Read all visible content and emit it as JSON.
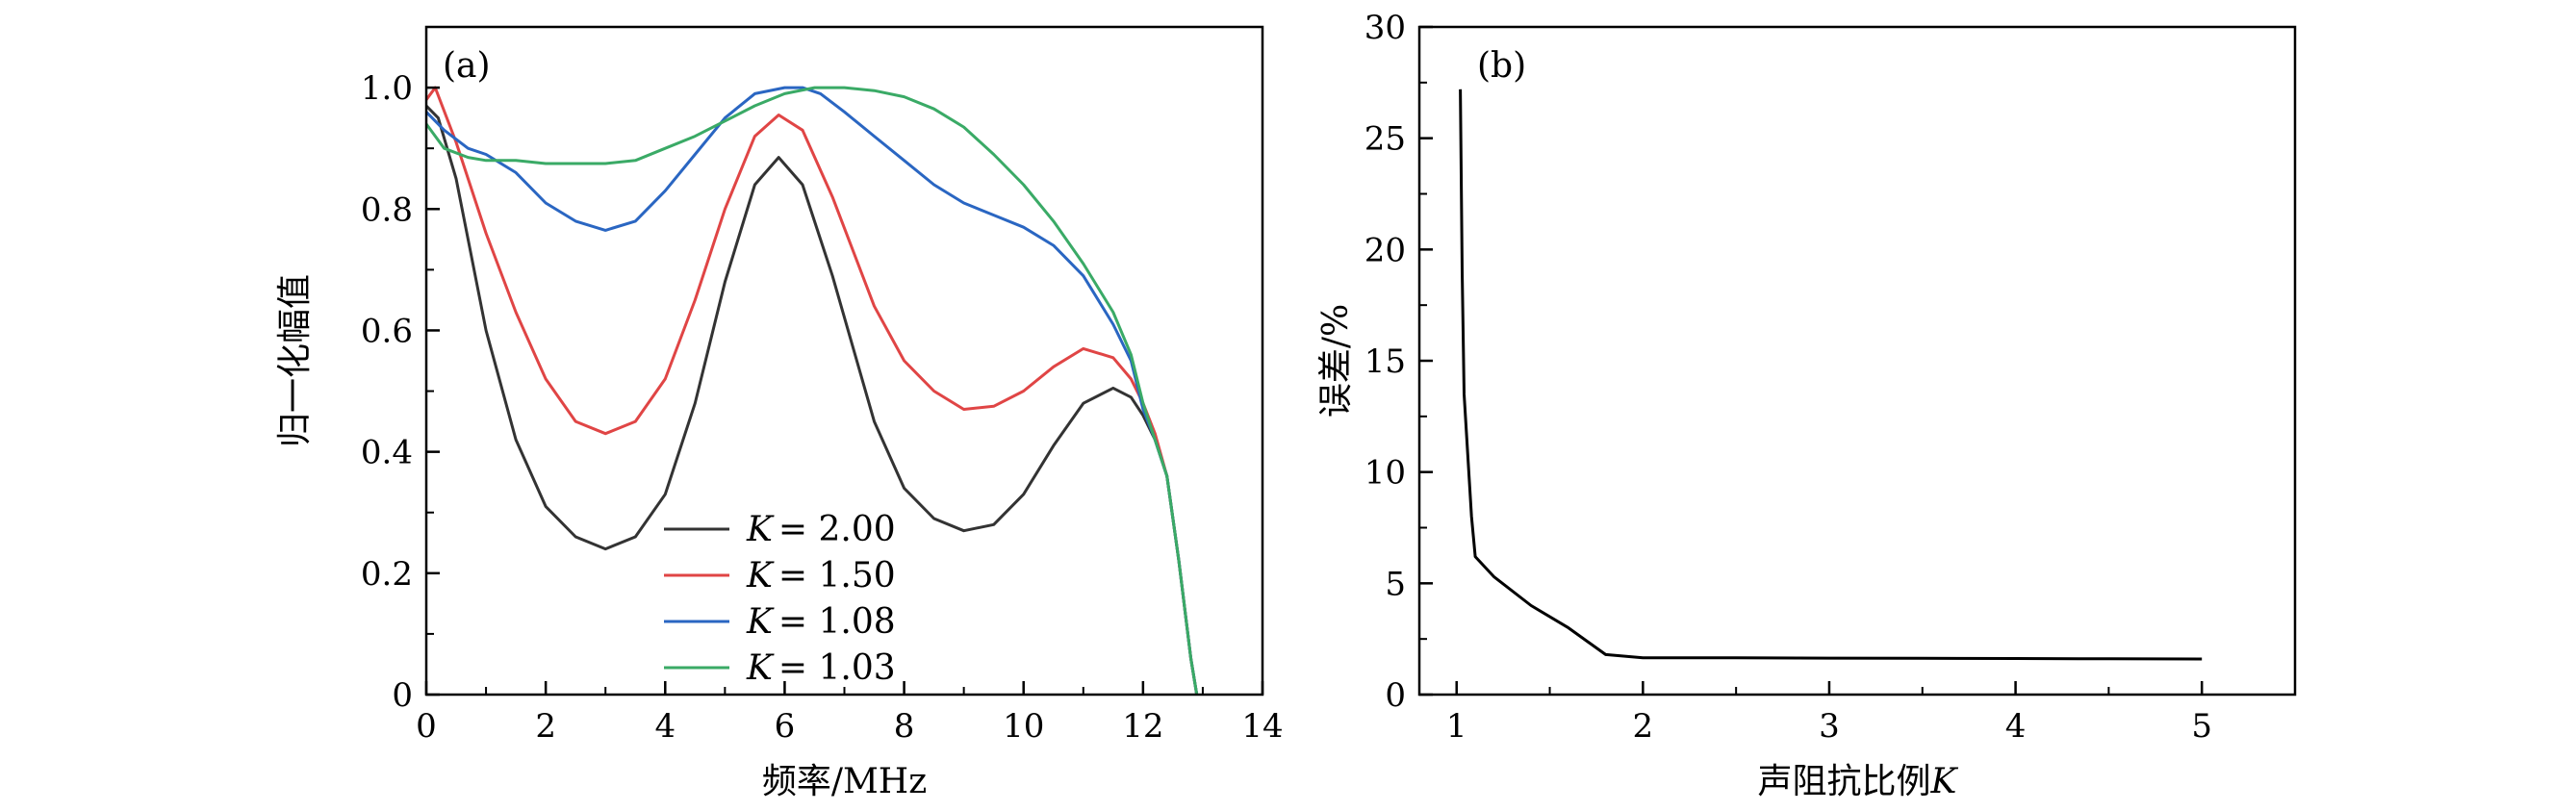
{
  "chart_data": [
    {
      "type": "line",
      "panel_label": "(a)",
      "xlabel": "频率/MHz",
      "ylabel": "归一化幅值",
      "xlim": [
        0,
        14
      ],
      "ylim": [
        0,
        1.1
      ],
      "xticks": [
        0,
        2,
        4,
        6,
        8,
        10,
        12,
        14
      ],
      "xtick_labels": [
        "0",
        "2",
        "4",
        "6",
        "8",
        "10",
        "12",
        "14"
      ],
      "yticks": [
        0,
        0.2,
        0.4,
        0.6,
        0.8,
        1.0
      ],
      "ytick_labels": [
        "0",
        "0.2",
        "0.4",
        "0.6",
        "0.8",
        "1.0"
      ],
      "legend": {
        "position": "lower-center",
        "entries": [
          {
            "label_prefix": "K",
            "label_value": "= 2.00",
            "color": "#333333"
          },
          {
            "label_prefix": "K",
            "label_value": "= 1.50",
            "color": "#e04545"
          },
          {
            "label_prefix": "K",
            "label_value": "= 1.08",
            "color": "#2a66c2"
          },
          {
            "label_prefix": "K",
            "label_value": "= 1.03",
            "color": "#3aaa66"
          }
        ]
      },
      "series": [
        {
          "name": "K = 2.00",
          "color": "#333333",
          "x": [
            0,
            0.2,
            0.5,
            1.0,
            1.5,
            2.0,
            2.5,
            3.0,
            3.5,
            4.0,
            4.5,
            5.0,
            5.5,
            5.9,
            6.3,
            6.8,
            7.5,
            8.0,
            8.5,
            9.0,
            9.5,
            10.0,
            10.5,
            11.0,
            11.5,
            11.8,
            12.0,
            12.2,
            12.4,
            12.6,
            12.8,
            12.9
          ],
          "y": [
            0.97,
            0.95,
            0.85,
            0.6,
            0.42,
            0.31,
            0.26,
            0.24,
            0.26,
            0.33,
            0.48,
            0.68,
            0.84,
            0.885,
            0.84,
            0.69,
            0.45,
            0.34,
            0.29,
            0.27,
            0.28,
            0.33,
            0.41,
            0.48,
            0.505,
            0.49,
            0.46,
            0.42,
            0.36,
            0.22,
            0.06,
            0.0
          ]
        },
        {
          "name": "K = 1.50",
          "color": "#e04545",
          "x": [
            0,
            0.15,
            0.5,
            1.0,
            1.5,
            2.0,
            2.5,
            3.0,
            3.5,
            4.0,
            4.5,
            5.0,
            5.5,
            5.9,
            6.3,
            6.8,
            7.5,
            8.0,
            8.5,
            9.0,
            9.5,
            10.0,
            10.5,
            11.0,
            11.5,
            11.8,
            12.0,
            12.2,
            12.4,
            12.6,
            12.8,
            12.9
          ],
          "y": [
            0.98,
            1.0,
            0.91,
            0.76,
            0.63,
            0.52,
            0.45,
            0.43,
            0.45,
            0.52,
            0.65,
            0.8,
            0.92,
            0.955,
            0.93,
            0.82,
            0.64,
            0.55,
            0.5,
            0.47,
            0.475,
            0.5,
            0.54,
            0.57,
            0.555,
            0.52,
            0.48,
            0.43,
            0.36,
            0.22,
            0.06,
            0.0
          ]
        },
        {
          "name": "K = 1.08",
          "color": "#2a66c2",
          "x": [
            0,
            0.3,
            0.7,
            1.0,
            1.5,
            2.0,
            2.5,
            3.0,
            3.5,
            4.0,
            4.5,
            5.0,
            5.5,
            6.0,
            6.3,
            6.6,
            7.0,
            7.5,
            8.0,
            8.5,
            9.0,
            9.5,
            10.0,
            10.5,
            11.0,
            11.5,
            11.8,
            12.0,
            12.2,
            12.4,
            12.6,
            12.8,
            12.9
          ],
          "y": [
            0.96,
            0.93,
            0.9,
            0.89,
            0.86,
            0.81,
            0.78,
            0.765,
            0.78,
            0.83,
            0.89,
            0.95,
            0.99,
            1.0,
            1.0,
            0.99,
            0.96,
            0.92,
            0.88,
            0.84,
            0.81,
            0.79,
            0.77,
            0.74,
            0.69,
            0.61,
            0.55,
            0.47,
            0.42,
            0.36,
            0.22,
            0.06,
            0.0
          ]
        },
        {
          "name": "K = 1.03",
          "color": "#3aaa66",
          "x": [
            0,
            0.3,
            0.7,
            1.0,
            1.5,
            2.0,
            2.5,
            3.0,
            3.5,
            4.0,
            4.5,
            5.0,
            5.5,
            6.0,
            6.5,
            7.0,
            7.5,
            8.0,
            8.5,
            9.0,
            9.5,
            10.0,
            10.5,
            11.0,
            11.5,
            11.8,
            12.0,
            12.2,
            12.4,
            12.6,
            12.8,
            12.9
          ],
          "y": [
            0.94,
            0.9,
            0.885,
            0.88,
            0.88,
            0.875,
            0.875,
            0.875,
            0.88,
            0.9,
            0.92,
            0.945,
            0.97,
            0.99,
            1.0,
            1.0,
            0.995,
            0.985,
            0.965,
            0.935,
            0.89,
            0.84,
            0.78,
            0.71,
            0.63,
            0.56,
            0.48,
            0.42,
            0.36,
            0.22,
            0.06,
            0.0
          ]
        }
      ]
    },
    {
      "type": "line",
      "panel_label": "(b)",
      "xlabel_prefix": "声阻抗比例",
      "xlabel_var": "K",
      "ylabel": "误差/%",
      "xlim": [
        0.8,
        5.5
      ],
      "ylim": [
        0,
        30
      ],
      "xticks": [
        1,
        2,
        3,
        4,
        5
      ],
      "xtick_labels": [
        "1",
        "2",
        "3",
        "4",
        "5"
      ],
      "yticks": [
        0,
        5,
        10,
        15,
        20,
        25,
        30
      ],
      "ytick_labels": [
        "0",
        "5",
        "10",
        "15",
        "20",
        "25",
        "30"
      ],
      "series": [
        {
          "name": "error",
          "color": "#000000",
          "x": [
            1.02,
            1.03,
            1.04,
            1.08,
            1.1,
            1.2,
            1.4,
            1.6,
            1.8,
            2.0,
            2.5,
            3.0,
            3.5,
            4.0,
            4.5,
            5.0
          ],
          "y": [
            27.2,
            19.0,
            13.5,
            8.0,
            6.2,
            5.3,
            4.0,
            3.0,
            1.8,
            1.65,
            1.65,
            1.64,
            1.63,
            1.62,
            1.61,
            1.6
          ]
        }
      ]
    }
  ]
}
